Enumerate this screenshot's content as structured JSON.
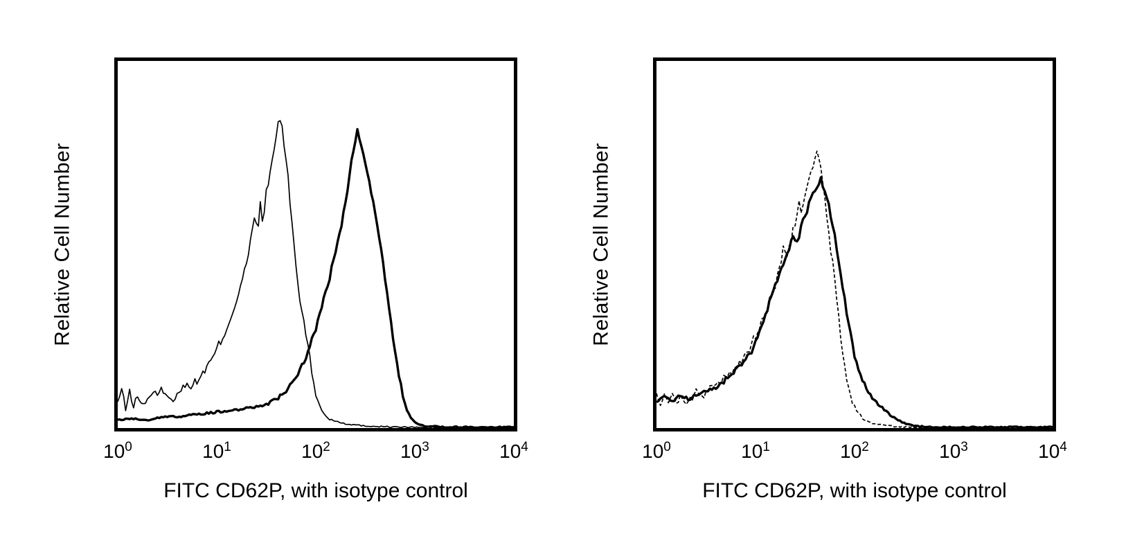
{
  "figure": {
    "background_color": "#ffffff",
    "stroke_color": "#000000",
    "description": "Two flow cytometry open-histogram overlay panels"
  },
  "chart_data": [
    {
      "type": "line",
      "subtype": "flow-cytometry-histogram-overlay",
      "panel": "left",
      "title": "",
      "xlabel": "FITC CD62P, with isotype control",
      "ylabel": "Relative Cell Number",
      "x_scale": "log10",
      "xlim_log10": [
        0,
        4
      ],
      "ylim": [
        0,
        1
      ],
      "grid": false,
      "legend": "none",
      "x_tick_base": "10",
      "x_tick_exponents": [
        "0",
        "1",
        "2",
        "3",
        "4"
      ],
      "series": [
        {
          "name": "isotype control",
          "line": "thin",
          "stroke_width": 1.7,
          "dash": "",
          "peak_log10_x": 1.63,
          "peak_height": 0.88,
          "points": [
            [
              0,
              0.07
            ],
            [
              0.04,
              0.11
            ],
            [
              0.08,
              0.05
            ],
            [
              0.12,
              0.1
            ],
            [
              0.16,
              0.06
            ],
            [
              0.2,
              0.09
            ],
            [
              0.25,
              0.06
            ],
            [
              0.3,
              0.08
            ],
            [
              0.35,
              0.1
            ],
            [
              0.4,
              0.09
            ],
            [
              0.45,
              0.11
            ],
            [
              0.5,
              0.09
            ],
            [
              0.55,
              0.07
            ],
            [
              0.6,
              0.1
            ],
            [
              0.65,
              0.11
            ],
            [
              0.7,
              0.12
            ],
            [
              0.75,
              0.12
            ],
            [
              0.8,
              0.13
            ],
            [
              0.85,
              0.15
            ],
            [
              0.9,
              0.17
            ],
            [
              0.95,
              0.19
            ],
            [
              1,
              0.22
            ],
            [
              1.05,
              0.25
            ],
            [
              1.1,
              0.28
            ],
            [
              1.15,
              0.32
            ],
            [
              1.2,
              0.36
            ],
            [
              1.25,
              0.41
            ],
            [
              1.3,
              0.46
            ],
            [
              1.34,
              0.52
            ],
            [
              1.38,
              0.6
            ],
            [
              1.41,
              0.55
            ],
            [
              1.44,
              0.63
            ],
            [
              1.47,
              0.58
            ],
            [
              1.5,
              0.66
            ],
            [
              1.54,
              0.72
            ],
            [
              1.58,
              0.79
            ],
            [
              1.61,
              0.84
            ],
            [
              1.63,
              0.88
            ],
            [
              1.66,
              0.85
            ],
            [
              1.69,
              0.78
            ],
            [
              1.72,
              0.7
            ],
            [
              1.76,
              0.58
            ],
            [
              1.8,
              0.46
            ],
            [
              1.84,
              0.36
            ],
            [
              1.88,
              0.3
            ],
            [
              1.92,
              0.24
            ],
            [
              1.96,
              0.15
            ],
            [
              2,
              0.09
            ],
            [
              2.06,
              0.05
            ],
            [
              2.12,
              0.025
            ],
            [
              2.3,
              0.01
            ],
            [
              2.5,
              0.004
            ],
            [
              2.8,
              0.001
            ],
            [
              3,
              0
            ],
            [
              4,
              0
            ]
          ]
        },
        {
          "name": "FITC CD62P",
          "line": "thick",
          "stroke_width": 3.4,
          "dash": "",
          "peak_log10_x": 2.42,
          "peak_height": 0.84,
          "points": [
            [
              0,
              0.02
            ],
            [
              0.15,
              0.025
            ],
            [
              0.3,
              0.02
            ],
            [
              0.45,
              0.03
            ],
            [
              0.6,
              0.03
            ],
            [
              0.75,
              0.035
            ],
            [
              0.9,
              0.04
            ],
            [
              1.05,
              0.045
            ],
            [
              1.2,
              0.05
            ],
            [
              1.35,
              0.055
            ],
            [
              1.5,
              0.065
            ],
            [
              1.6,
              0.08
            ],
            [
              1.7,
              0.1
            ],
            [
              1.8,
              0.14
            ],
            [
              1.9,
              0.2
            ],
            [
              2,
              0.28
            ],
            [
              2.1,
              0.38
            ],
            [
              2.18,
              0.47
            ],
            [
              2.26,
              0.57
            ],
            [
              2.32,
              0.67
            ],
            [
              2.36,
              0.75
            ],
            [
              2.39,
              0.8
            ],
            [
              2.42,
              0.84
            ],
            [
              2.45,
              0.8
            ],
            [
              2.48,
              0.77
            ],
            [
              2.52,
              0.72
            ],
            [
              2.56,
              0.67
            ],
            [
              2.6,
              0.61
            ],
            [
              2.64,
              0.54
            ],
            [
              2.68,
              0.46
            ],
            [
              2.72,
              0.38
            ],
            [
              2.76,
              0.3
            ],
            [
              2.8,
              0.22
            ],
            [
              2.84,
              0.15
            ],
            [
              2.88,
              0.09
            ],
            [
              2.92,
              0.05
            ],
            [
              2.96,
              0.025
            ],
            [
              3.02,
              0.01
            ],
            [
              3.1,
              0.004
            ],
            [
              3.3,
              0.001
            ],
            [
              3.6,
              0
            ],
            [
              4,
              0
            ]
          ]
        }
      ]
    },
    {
      "type": "line",
      "subtype": "flow-cytometry-histogram-overlay",
      "panel": "right",
      "title": "",
      "xlabel": "FITC CD62P, with isotype control",
      "ylabel": "Relative Cell Number",
      "x_scale": "log10",
      "xlim_log10": [
        0,
        4
      ],
      "ylim": [
        0,
        1
      ],
      "grid": false,
      "legend": "none",
      "x_tick_base": "10",
      "x_tick_exponents": [
        "0",
        "1",
        "2",
        "3",
        "4"
      ],
      "series": [
        {
          "name": "isotype control",
          "line": "thin",
          "stroke_width": 1.7,
          "dash": "5 3",
          "peak_log10_x": 1.62,
          "peak_height": 0.78,
          "points": [
            [
              0,
              0.09
            ],
            [
              0.04,
              0.06
            ],
            [
              0.08,
              0.1
            ],
            [
              0.12,
              0.07
            ],
            [
              0.16,
              0.09
            ],
            [
              0.2,
              0.07
            ],
            [
              0.25,
              0.09
            ],
            [
              0.3,
              0.07
            ],
            [
              0.35,
              0.08
            ],
            [
              0.4,
              0.1
            ],
            [
              0.45,
              0.08
            ],
            [
              0.5,
              0.1
            ],
            [
              0.55,
              0.11
            ],
            [
              0.6,
              0.12
            ],
            [
              0.65,
              0.13
            ],
            [
              0.7,
              0.14
            ],
            [
              0.75,
              0.15
            ],
            [
              0.8,
              0.17
            ],
            [
              0.85,
              0.18
            ],
            [
              0.9,
              0.2
            ],
            [
              0.95,
              0.23
            ],
            [
              1,
              0.26
            ],
            [
              1.05,
              0.29
            ],
            [
              1.1,
              0.33
            ],
            [
              1.15,
              0.36
            ],
            [
              1.2,
              0.4
            ],
            [
              1.25,
              0.45
            ],
            [
              1.28,
              0.52
            ],
            [
              1.31,
              0.47
            ],
            [
              1.35,
              0.52
            ],
            [
              1.4,
              0.58
            ],
            [
              1.44,
              0.64
            ],
            [
              1.47,
              0.6
            ],
            [
              1.51,
              0.67
            ],
            [
              1.55,
              0.72
            ],
            [
              1.59,
              0.75
            ],
            [
              1.62,
              0.78
            ],
            [
              1.64,
              0.76
            ],
            [
              1.67,
              0.71
            ],
            [
              1.7,
              0.64
            ],
            [
              1.74,
              0.55
            ],
            [
              1.78,
              0.46
            ],
            [
              1.82,
              0.36
            ],
            [
              1.86,
              0.26
            ],
            [
              1.9,
              0.17
            ],
            [
              1.94,
              0.11
            ],
            [
              1.98,
              0.07
            ],
            [
              2.04,
              0.04
            ],
            [
              2.1,
              0.02
            ],
            [
              2.2,
              0.01
            ],
            [
              2.4,
              0.003
            ],
            [
              2.6,
              0
            ],
            [
              4,
              0
            ]
          ]
        },
        {
          "name": "FITC CD62P",
          "line": "thick",
          "stroke_width": 3.4,
          "dash": "",
          "peak_log10_x": 1.66,
          "peak_height": 0.7,
          "points": [
            [
              0,
              0.075
            ],
            [
              0.08,
              0.09
            ],
            [
              0.16,
              0.07
            ],
            [
              0.24,
              0.09
            ],
            [
              0.32,
              0.08
            ],
            [
              0.4,
              0.09
            ],
            [
              0.48,
              0.1
            ],
            [
              0.56,
              0.11
            ],
            [
              0.64,
              0.12
            ],
            [
              0.72,
              0.14
            ],
            [
              0.8,
              0.16
            ],
            [
              0.88,
              0.18
            ],
            [
              0.95,
              0.21
            ],
            [
              1,
              0.24
            ],
            [
              1.05,
              0.28
            ],
            [
              1.1,
              0.32
            ],
            [
              1.15,
              0.36
            ],
            [
              1.2,
              0.4
            ],
            [
              1.25,
              0.44
            ],
            [
              1.3,
              0.47
            ],
            [
              1.34,
              0.51
            ],
            [
              1.38,
              0.55
            ],
            [
              1.42,
              0.52
            ],
            [
              1.46,
              0.57
            ],
            [
              1.5,
              0.6
            ],
            [
              1.54,
              0.63
            ],
            [
              1.58,
              0.66
            ],
            [
              1.62,
              0.68
            ],
            [
              1.66,
              0.7
            ],
            [
              1.69,
              0.68
            ],
            [
              1.72,
              0.65
            ],
            [
              1.76,
              0.6
            ],
            [
              1.8,
              0.54
            ],
            [
              1.84,
              0.47
            ],
            [
              1.88,
              0.4
            ],
            [
              1.92,
              0.33
            ],
            [
              1.96,
              0.26
            ],
            [
              2,
              0.2
            ],
            [
              2.05,
              0.15
            ],
            [
              2.1,
              0.12
            ],
            [
              2.15,
              0.095
            ],
            [
              2.2,
              0.075
            ],
            [
              2.28,
              0.055
            ],
            [
              2.36,
              0.035
            ],
            [
              2.44,
              0.02
            ],
            [
              2.52,
              0.01
            ],
            [
              2.62,
              0.003
            ],
            [
              2.8,
              0
            ],
            [
              4,
              0
            ]
          ]
        }
      ]
    }
  ]
}
